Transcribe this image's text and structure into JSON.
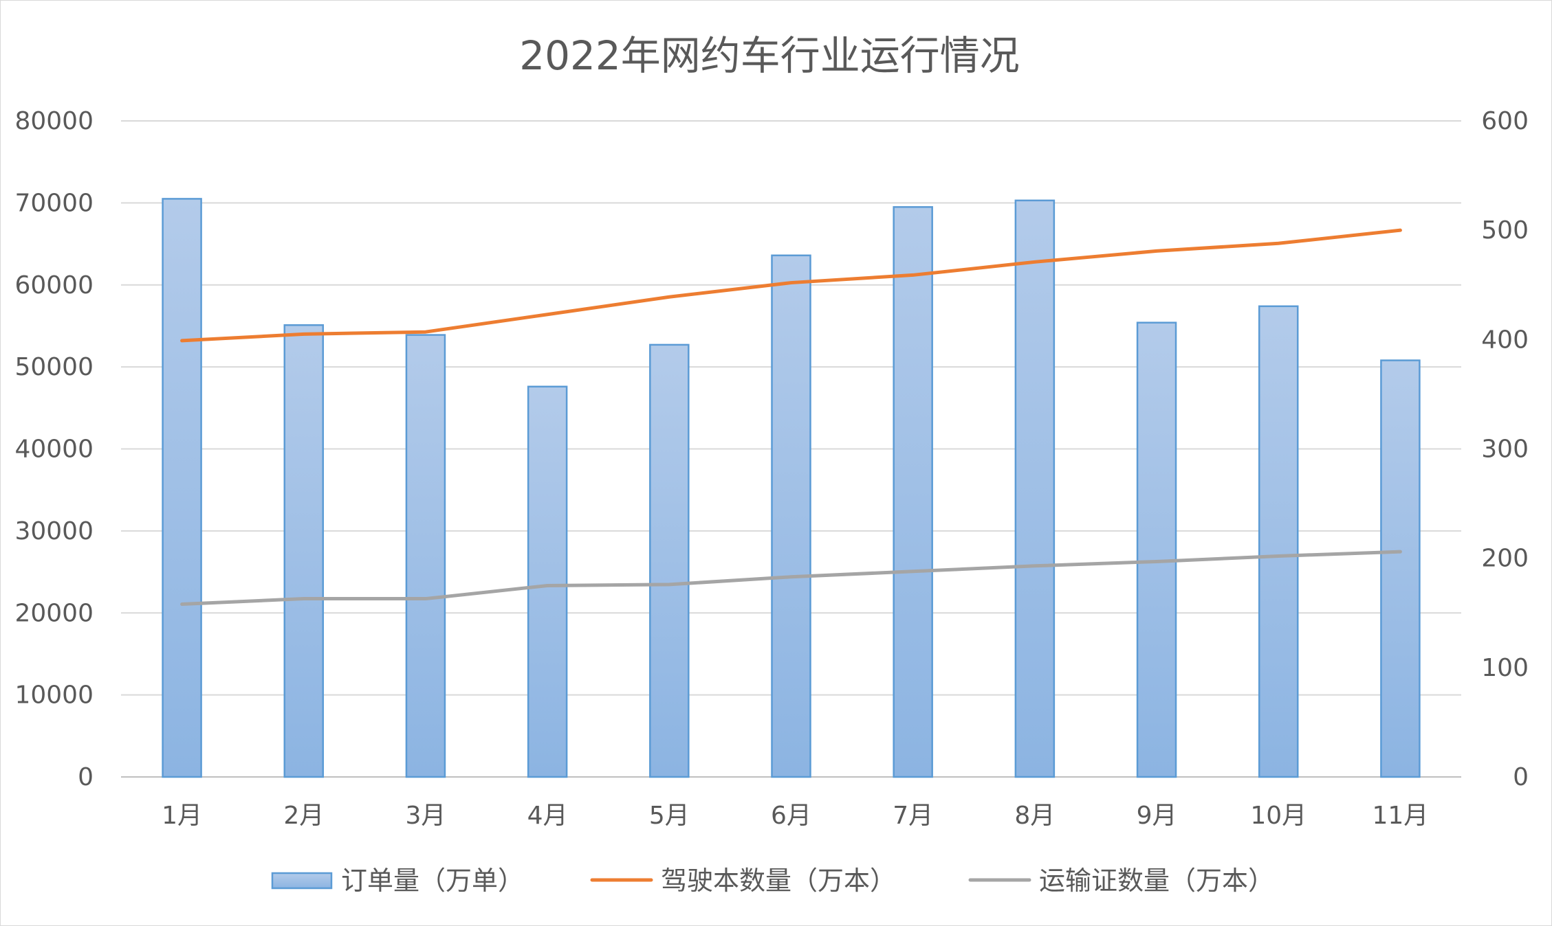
{
  "chart_data": {
    "type": "bar",
    "title": "2022年网约车行业运行情况",
    "categories": [
      "1月",
      "2月",
      "3月",
      "4月",
      "5月",
      "6月",
      "7月",
      "8月",
      "9月",
      "10月",
      "11月"
    ],
    "y_left": {
      "ticks": [
        "0",
        "10000",
        "20000",
        "30000",
        "40000",
        "50000",
        "60000",
        "70000",
        "80000"
      ],
      "ylim": [
        0,
        80000
      ]
    },
    "y_right": {
      "ticks": [
        "0",
        "100",
        "200",
        "300",
        "400",
        "500",
        "600"
      ],
      "ylim": [
        0,
        600
      ]
    },
    "grid": true,
    "legend_position": "bottom",
    "series": [
      {
        "name": "订单量（万单）",
        "type": "bar",
        "axis": "left",
        "color": "#5b9bd5",
        "values": [
          70500,
          55100,
          53900,
          47600,
          52700,
          63600,
          69500,
          70300,
          55400,
          57400,
          50800
        ]
      },
      {
        "name": "驾驶本数量（万本）",
        "type": "line",
        "axis": "right",
        "color": "#ed7d31",
        "values": [
          399,
          405,
          407,
          423,
          439,
          452,
          459,
          471,
          481,
          488,
          500
        ]
      },
      {
        "name": "运输证数量（万本）",
        "type": "line",
        "axis": "right",
        "color": "#a5a5a5",
        "values": [
          158,
          163,
          163,
          175,
          176,
          183,
          188,
          193,
          197,
          202,
          206
        ]
      }
    ]
  }
}
